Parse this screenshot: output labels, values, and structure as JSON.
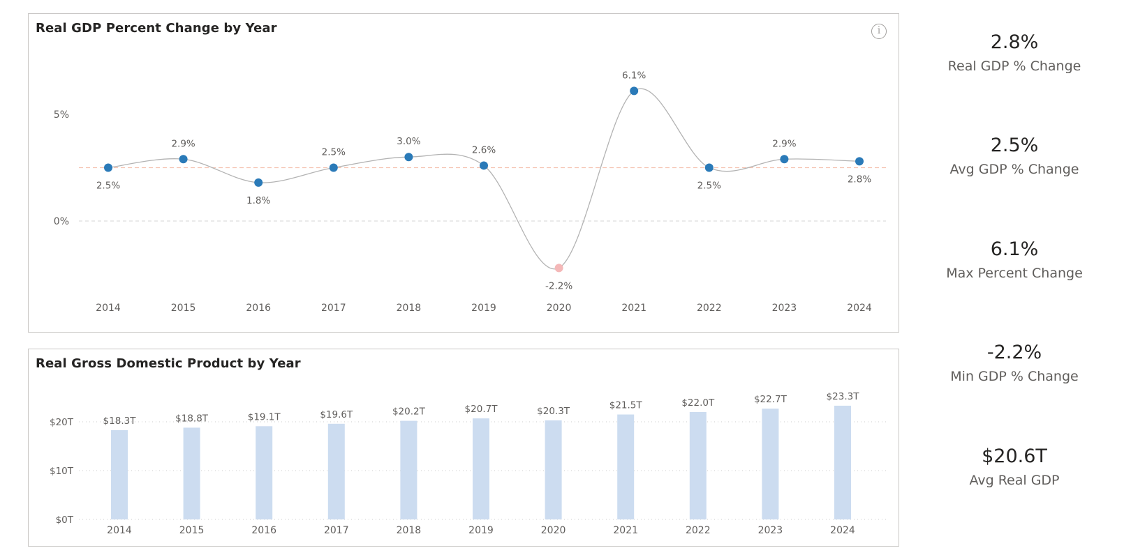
{
  "kpis": [
    {
      "value": "2.8%",
      "label": "Real GDP % Change"
    },
    {
      "value": "2.5%",
      "label": "Avg GDP % Change"
    },
    {
      "value": "6.1%",
      "label": "Max Percent Change"
    },
    {
      "value": "-2.2%",
      "label": "Min GDP % Change"
    },
    {
      "value": "$20.6T",
      "label": "Avg Real GDP"
    }
  ],
  "chart_data": [
    {
      "type": "line",
      "title": "Real GDP Percent Change by Year",
      "x": [
        "2014",
        "2015",
        "2016",
        "2017",
        "2018",
        "2019",
        "2020",
        "2021",
        "2022",
        "2023",
        "2024"
      ],
      "values": [
        2.5,
        2.9,
        1.8,
        2.5,
        3.0,
        2.6,
        -2.2,
        6.1,
        2.5,
        2.9,
        2.8
      ],
      "data_labels": [
        "2.5%",
        "2.9%",
        "1.8%",
        "2.5%",
        "3.0%",
        "2.6%",
        "-2.2%",
        "6.1%",
        "2.5%",
        "2.9%",
        "2.8%"
      ],
      "y_ticks": [
        {
          "value": 0,
          "label": "0%"
        },
        {
          "value": 5,
          "label": "5%"
        }
      ],
      "average_line": 2.5,
      "highlight_min": true,
      "colors": {
        "point": "#2a7ab8",
        "min_point": "#f4b8b8",
        "line": "#b3b3b3",
        "avg_line": "#f5c2b0",
        "zero_line": "#d6d6d6"
      }
    },
    {
      "type": "bar",
      "title": "Real Gross Domestic Product by Year",
      "categories": [
        "2014",
        "2015",
        "2016",
        "2017",
        "2018",
        "2019",
        "2020",
        "2021",
        "2022",
        "2023",
        "2024"
      ],
      "values": [
        18.3,
        18.8,
        19.1,
        19.6,
        20.2,
        20.7,
        20.3,
        21.5,
        22.0,
        22.7,
        23.3
      ],
      "data_labels": [
        "$18.3T",
        "$18.8T",
        "$19.1T",
        "$19.6T",
        "$20.2T",
        "$20.7T",
        "$20.3T",
        "$21.5T",
        "$22.0T",
        "$22.7T",
        "$23.3T"
      ],
      "y_ticks": [
        {
          "value": 0,
          "label": "$0T"
        },
        {
          "value": 10,
          "label": "$10T"
        },
        {
          "value": 20,
          "label": "$20T"
        }
      ],
      "colors": {
        "bar": "#ccdcf0"
      }
    }
  ]
}
